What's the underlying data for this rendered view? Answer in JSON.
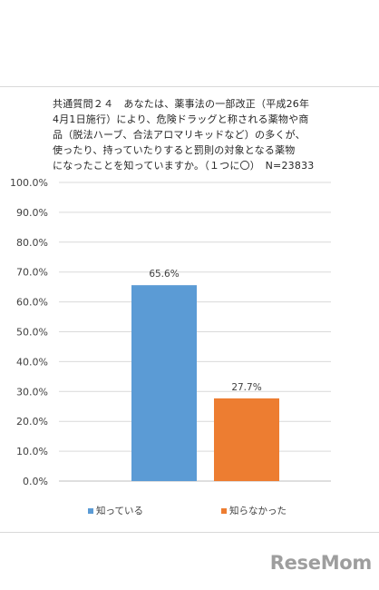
{
  "chart_title": "共通質問２４　あなたは、薬事法の一部改正（平成26年\n4月1日施行）により、危険ドラッグと称される薬物や商\n品（脱法ハーブ、合法アロマリキッドなど）の多くが、\n使ったり、持っていたりすると罰則の対象となる薬物\nになったことを知っていますか。（１つに〇）　N=23833",
  "chart_data": {
    "type": "bar",
    "categories": [
      "知っている",
      "知らなかった"
    ],
    "values": [
      65.6,
      27.7
    ],
    "value_labels": [
      "65.6%",
      "27.7%"
    ],
    "ylim": [
      0,
      100
    ],
    "yticks": [
      "0.0%",
      "10.0%",
      "20.0%",
      "30.0%",
      "40.0%",
      "50.0%",
      "60.0%",
      "70.0%",
      "80.0%",
      "90.0%",
      "100.0%"
    ],
    "colors": [
      "#5b9bd5",
      "#ed7d31"
    ],
    "grid": true,
    "legend": "bottom"
  },
  "legend": {
    "items": [
      {
        "label": "知っている",
        "color": "#5b9bd5"
      },
      {
        "label": "知らなかった",
        "color": "#ed7d31"
      }
    ]
  },
  "logo": "ReseMom"
}
